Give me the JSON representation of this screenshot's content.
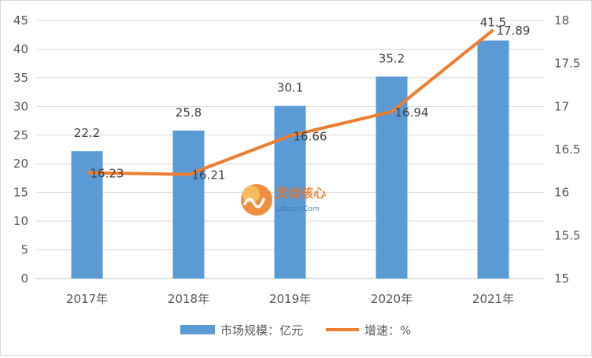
{
  "chart_data": {
    "type": "bar",
    "categories": [
      "2017年",
      "2018年",
      "2019年",
      "2020年",
      "2021年"
    ],
    "series": [
      {
        "name": "市场规模：亿元",
        "type": "bar",
        "axis": "left",
        "values": [
          22.2,
          25.8,
          30.1,
          35.2,
          41.5
        ],
        "labels": [
          "22.2",
          "25.8",
          "30.1",
          "35.2",
          "41.5"
        ],
        "color": "#5b9bd5"
      },
      {
        "name": "增速：%",
        "type": "line",
        "axis": "right",
        "values": [
          16.23,
          16.21,
          16.66,
          16.94,
          17.89
        ],
        "labels": [
          "16.23",
          "16.21",
          "16.66",
          "16.94",
          "17.89"
        ],
        "color": "#ed7d31"
      }
    ],
    "y_left": {
      "min": 0,
      "max": 45,
      "ticks": [
        "0",
        "5",
        "10",
        "15",
        "20",
        "25",
        "30",
        "35",
        "40",
        "45"
      ]
    },
    "y_right": {
      "min": 15,
      "max": 18,
      "ticks": [
        "15",
        "15.5",
        "16",
        "16.5",
        "17",
        "17.5",
        "18"
      ]
    },
    "legend_position": "bottom",
    "grid": true
  },
  "watermark": {
    "title": "灵动核心",
    "subtitle": "Ldhxcn.Com"
  }
}
